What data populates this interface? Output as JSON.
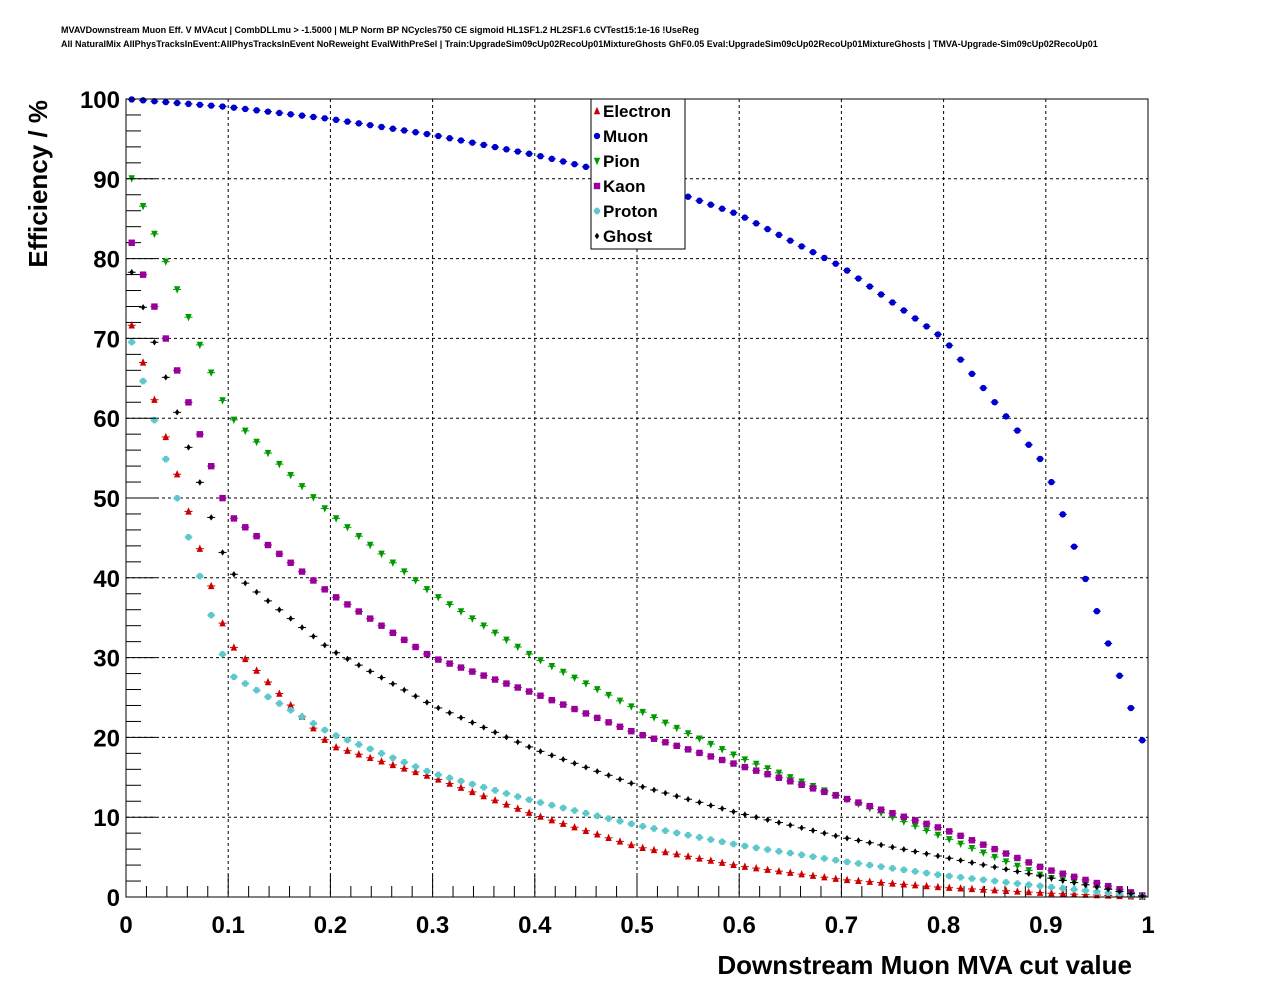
{
  "chart_data": {
    "type": "scatter",
    "title_lines": [
      "MVAVDownstream Muon Eff. V MVAcut | CombDLLmu > -1.5000 | MLP Norm BP NCycles750 CE sigmoid HL1SF1.2 HL2SF1.6 CVTest15:1e-16 !UseReg",
      "All NaturalMix AllPhysTracksInEvent:AllPhysTracksInEvent NoReweight EvalWithPreSel | Train:UpgradeSim09cUp02RecoUp01MixtureGhosts GhF0.05 Eval:UpgradeSim09cUp02RecoUp01MixtureGhosts | TMVA-Upgrade-Sim09cUp02RecoUp01"
    ],
    "xlabel": "Downstream Muon MVA cut value",
    "ylabel": "Efficiency / %",
    "xlim": [
      0,
      1
    ],
    "ylim": [
      0,
      100
    ],
    "x_ticks": [
      "0",
      "0.1",
      "0.2",
      "0.3",
      "0.4",
      "0.5",
      "0.6",
      "0.7",
      "0.8",
      "0.9",
      "1"
    ],
    "y_ticks": [
      "0",
      "10",
      "20",
      "30",
      "40",
      "50",
      "60",
      "70",
      "80",
      "90",
      "100"
    ],
    "grid": true,
    "legend_position": "top-center",
    "x": [
      0,
      0.1,
      0.2,
      0.3,
      0.4,
      0.5,
      0.6,
      0.7,
      0.8,
      0.9,
      1.0
    ],
    "series": [
      {
        "name": "Electron",
        "color": "#cc0000",
        "marker": "triangle-up",
        "n_points": 90,
        "x_start": 0.0056,
        "x_end": 0.9944,
        "values": [
          74,
          32,
          19,
          15,
          10.3,
          6.3,
          3.9,
          2.2,
          1.2,
          0.5,
          0
        ]
      },
      {
        "name": "Muon",
        "color": "#0000cc",
        "marker": "circle",
        "n_points": 90,
        "x_start": 0.0056,
        "x_end": 0.9944,
        "values": [
          100,
          99,
          97.5,
          95.5,
          93,
          90,
          85.5,
          79,
          70,
          54,
          17.6
        ]
      },
      {
        "name": "Pion",
        "color": "#009900",
        "marker": "triangle-down",
        "n_points": 90,
        "x_start": 0.0056,
        "x_end": 0.9944,
        "values": [
          91.8,
          60.5,
          48,
          38,
          30,
          23.5,
          17.5,
          12.5,
          7.5,
          2.5,
          0
        ]
      },
      {
        "name": "Kaon",
        "color": "#990099",
        "marker": "square",
        "n_points": 90,
        "x_start": 0.0056,
        "x_end": 0.9944,
        "values": [
          84,
          48,
          38,
          30,
          25.5,
          20.5,
          16.5,
          12.5,
          8.5,
          3.5,
          0
        ]
      },
      {
        "name": "Proton",
        "color": "#5cc8cc",
        "marker": "cross",
        "n_points": 90,
        "x_start": 0.0056,
        "x_end": 0.9944,
        "values": [
          72,
          28,
          20.5,
          15.5,
          12,
          9,
          6.5,
          4.5,
          2.7,
          1.3,
          0
        ]
      },
      {
        "name": "Ghost",
        "color": "#000000",
        "marker": "diamond",
        "n_points": 90,
        "x_start": 0.0056,
        "x_end": 0.9944,
        "values": [
          80.5,
          41,
          31,
          24,
          18.5,
          14,
          10.5,
          7.5,
          5,
          2.5,
          0
        ]
      }
    ]
  }
}
